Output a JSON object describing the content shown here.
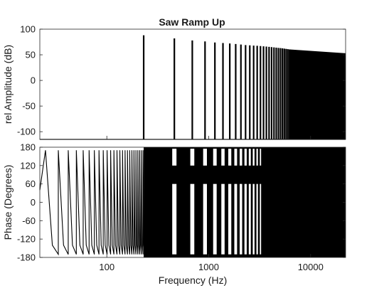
{
  "figure": {
    "title": "Saw Ramp Up"
  },
  "chart_data": [
    {
      "type": "bar",
      "name": "amplitude",
      "title": "Saw Ramp Up",
      "xlabel": "",
      "ylabel": "rel Amplitude (dB)",
      "xscale": "log",
      "xlim": [
        22,
        22050
      ],
      "ylim": [
        -115,
        100
      ],
      "yticks": [
        100,
        50,
        0,
        -50,
        -100
      ],
      "grid": false,
      "fundamental_hz": 230,
      "harmonic_x": [
        230,
        460,
        690,
        920,
        1150,
        1380,
        1610,
        1840,
        2070,
        2300,
        2530,
        2760,
        2990,
        3220,
        3450,
        3680,
        3910,
        4140,
        4370,
        4600,
        4830,
        5060,
        5290,
        5520,
        5750,
        5980,
        6210
      ],
      "harmonic_db": [
        88,
        82,
        78,
        76,
        74,
        73,
        72,
        71,
        70,
        69,
        68.5,
        68,
        67.5,
        67,
        66.5,
        66,
        65.5,
        65,
        64.5,
        64,
        63.5,
        63,
        62.5,
        62,
        61.5,
        61,
        60.5
      ],
      "dense_band": {
        "x": [
          6210,
          22050
        ],
        "top_db": [
          60.5,
          53
        ],
        "bottom_db": -115
      },
      "noise_floor_db": -115
    },
    {
      "type": "line",
      "name": "phase",
      "xlabel": "Frequency (Hz)",
      "ylabel": "Phase (Degrees)",
      "xscale": "log",
      "xlim": [
        22,
        22050
      ],
      "ylim": [
        -180,
        180
      ],
      "xticks": [
        100,
        1000,
        10000
      ],
      "xtick_labels": [
        "100",
        "1000",
        "10000"
      ],
      "yticks": [
        180,
        120,
        60,
        0,
        -60,
        -120,
        -180
      ],
      "grid": false,
      "wrap_period_hz": 8.4,
      "transition_hz": 230,
      "gap_frequencies_hz": [
        460,
        690,
        920,
        1150,
        1380,
        1610,
        1840,
        2070,
        2300,
        2530,
        2760,
        2990,
        3220
      ]
    }
  ]
}
